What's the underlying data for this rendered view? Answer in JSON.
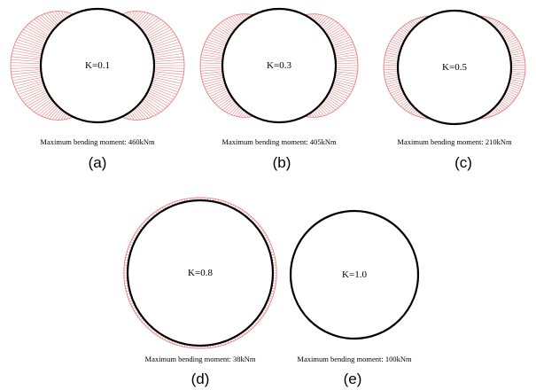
{
  "panels": [
    {
      "id": "a",
      "k_label": "K=0.1",
      "caption": "Maximum bending moment: 460kNm",
      "sublabel": "(a)",
      "moment_kNm": 460,
      "pattern": "sides-bulge-top-bottom-cusps"
    },
    {
      "id": "b",
      "k_label": "K=0.3",
      "caption": "Maximum bending moment: 405kNm",
      "sublabel": "(b)",
      "moment_kNm": 405,
      "pattern": "sides-bulge-top-bottom-cusps"
    },
    {
      "id": "c",
      "k_label": "K=0.5",
      "caption": "Maximum bending moment: 210kNm",
      "sublabel": "(c)",
      "moment_kNm": 210,
      "pattern": "sides-bulge-top-bottom-bands"
    },
    {
      "id": "d",
      "k_label": "K=0.8",
      "caption": "Maximum bending moment: 38kNm",
      "sublabel": "(d)",
      "moment_kNm": 38,
      "pattern": "thin-uniform-outside"
    },
    {
      "id": "e",
      "k_label": "K=1.0",
      "caption": "Maximum bending moment: 100kNm",
      "sublabel": "(e)",
      "moment_kNm": 100,
      "pattern": "inner-lower-side-bulges"
    }
  ],
  "colors": {
    "moment_diagram": "#e88080",
    "lining": "#000000"
  }
}
